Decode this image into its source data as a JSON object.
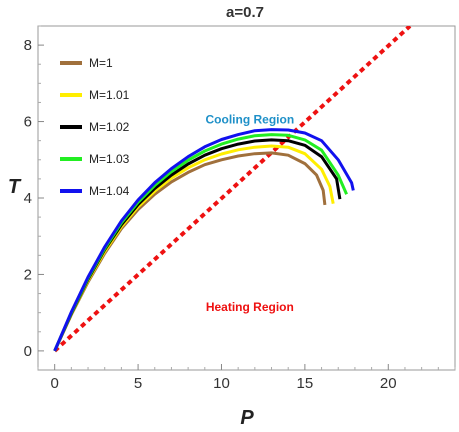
{
  "chart_data": {
    "type": "line",
    "title": "a=0.7",
    "xlabel": "P",
    "ylabel": "T",
    "xlim": [
      -1,
      24
    ],
    "ylim": [
      -0.5,
      8.5
    ],
    "xticks": [
      0,
      5,
      10,
      15,
      20
    ],
    "yticks": [
      0,
      2,
      4,
      6,
      8
    ],
    "legend_position": "top-left",
    "series": [
      {
        "name": "M=1",
        "color": "#a0703c",
        "x": [
          0,
          1,
          2,
          3,
          4,
          5,
          6,
          7,
          8,
          9,
          10,
          11,
          12,
          13,
          14,
          15,
          15.7,
          16.1,
          16.2
        ],
        "y": [
          0,
          0.95,
          1.8,
          2.55,
          3.2,
          3.7,
          4.1,
          4.42,
          4.67,
          4.87,
          5.0,
          5.1,
          5.16,
          5.18,
          5.12,
          4.9,
          4.6,
          4.2,
          3.82
        ]
      },
      {
        "name": "M=1.01",
        "color": "#ffee00",
        "x": [
          0,
          1,
          2,
          3,
          4,
          5,
          6,
          7,
          8,
          9,
          10,
          11,
          12,
          13,
          14,
          15,
          16,
          16.5,
          16.7
        ],
        "y": [
          0,
          0.97,
          1.84,
          2.6,
          3.25,
          3.77,
          4.18,
          4.52,
          4.79,
          5.0,
          5.15,
          5.26,
          5.33,
          5.36,
          5.33,
          5.16,
          4.75,
          4.3,
          3.85
        ]
      },
      {
        "name": "M=1.02",
        "color": "#000000",
        "x": [
          0,
          1,
          2,
          3,
          4,
          5,
          6,
          7,
          8,
          9,
          10,
          11,
          12,
          13,
          14,
          15,
          16,
          16.9,
          17.1
        ],
        "y": [
          0,
          0.98,
          1.87,
          2.65,
          3.3,
          3.83,
          4.25,
          4.6,
          4.89,
          5.12,
          5.29,
          5.41,
          5.49,
          5.52,
          5.5,
          5.38,
          5.08,
          4.5,
          3.97
        ]
      },
      {
        "name": "M=1.03",
        "color": "#22ee22",
        "x": [
          0,
          1,
          2,
          3,
          4,
          5,
          6,
          7,
          8,
          9,
          10,
          11,
          12,
          13,
          14,
          15,
          16,
          17,
          17.4,
          17.5
        ],
        "y": [
          0,
          1.0,
          1.9,
          2.68,
          3.35,
          3.89,
          4.33,
          4.69,
          4.99,
          5.23,
          5.41,
          5.54,
          5.63,
          5.66,
          5.64,
          5.52,
          5.25,
          4.6,
          4.2,
          4.1
        ]
      },
      {
        "name": "M=1.04",
        "color": "#1111ee",
        "x": [
          0,
          1,
          2,
          3,
          4,
          5,
          6,
          7,
          8,
          9,
          10,
          11,
          12,
          13,
          14,
          15,
          16,
          17,
          17.8,
          17.9
        ],
        "y": [
          0,
          1.02,
          1.93,
          2.72,
          3.4,
          3.95,
          4.4,
          4.77,
          5.08,
          5.34,
          5.53,
          5.66,
          5.76,
          5.79,
          5.78,
          5.7,
          5.5,
          5.0,
          4.4,
          4.2
        ]
      }
    ],
    "inversion_line": {
      "color": "#ee1111",
      "style": "dotted",
      "x": [
        0,
        21.3
      ],
      "y": [
        0,
        8.5
      ]
    },
    "annotations": [
      {
        "text": "Cooling Region",
        "color": "#1e90c8",
        "x": 11.7,
        "y": 5.95
      },
      {
        "text": "Heating Region",
        "color": "#ee1111",
        "x": 11.7,
        "y": 1.05
      }
    ]
  }
}
